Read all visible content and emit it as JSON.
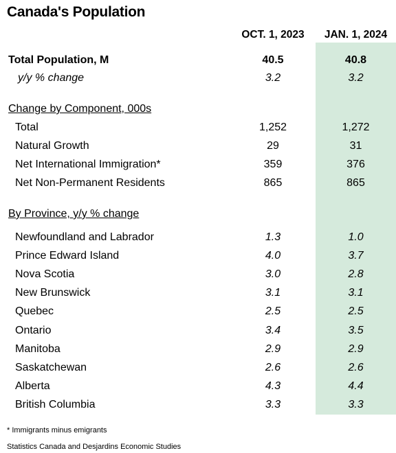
{
  "chart_data": {
    "type": "table",
    "title": "Canada's Population",
    "columns": [
      "OCT. 1, 2023",
      "JAN. 1, 2024"
    ],
    "highlighted_column": 1,
    "highlight_color": "#d5eadc",
    "summary_rows": [
      {
        "label": "Total Population, M",
        "values": [
          "40.5",
          "40.8"
        ]
      },
      {
        "label": "y/y % change",
        "values": [
          "3.2",
          "3.2"
        ]
      }
    ],
    "components_header": "Change by Component, 000s",
    "components": [
      {
        "label": "Total",
        "values": [
          "1,252",
          "1,272"
        ]
      },
      {
        "label": "Natural Growth",
        "values": [
          "29",
          "31"
        ]
      },
      {
        "label": "Net International Immigration*",
        "values": [
          "359",
          "376"
        ]
      },
      {
        "label": "Net Non-Permanent Residents",
        "values": [
          "865",
          "865"
        ]
      }
    ],
    "provinces_header": "By Province, y/y % change",
    "provinces": [
      {
        "label": "Newfoundland and Labrador",
        "values": [
          "1.3",
          "1.0"
        ]
      },
      {
        "label": "Prince Edward Island",
        "values": [
          "4.0",
          "3.7"
        ]
      },
      {
        "label": "Nova Scotia",
        "values": [
          "3.0",
          "2.8"
        ]
      },
      {
        "label": "New Brunswick",
        "values": [
          "3.1",
          "3.1"
        ]
      },
      {
        "label": "Quebec",
        "values": [
          "2.5",
          "2.5"
        ]
      },
      {
        "label": "Ontario",
        "values": [
          "3.4",
          "3.5"
        ]
      },
      {
        "label": "Manitoba",
        "values": [
          "2.9",
          "2.9"
        ]
      },
      {
        "label": "Saskatchewan",
        "values": [
          "2.6",
          "2.6"
        ]
      },
      {
        "label": "Alberta",
        "values": [
          "4.3",
          "4.4"
        ]
      },
      {
        "label": "British Columbia",
        "values": [
          "3.3",
          "3.3"
        ]
      }
    ],
    "footnote": "* Immigrants minus emigrants",
    "source": "Statistics Canada and Desjardins Economic Studies"
  }
}
